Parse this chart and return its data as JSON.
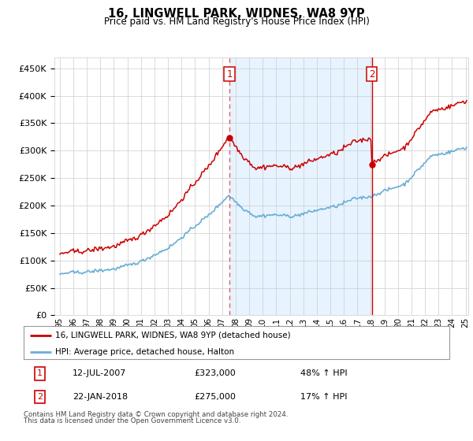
{
  "title": "16, LINGWELL PARK, WIDNES, WA8 9YP",
  "subtitle": "Price paid vs. HM Land Registry's House Price Index (HPI)",
  "legend_line1": "16, LINGWELL PARK, WIDNES, WA8 9YP (detached house)",
  "legend_line2": "HPI: Average price, detached house, Halton",
  "sale1_date": "12-JUL-2007",
  "sale1_price": "£323,000",
  "sale1_hpi": "48% ↑ HPI",
  "sale1_year": 2007.54,
  "sale1_value": 323000,
  "sale2_date": "22-JAN-2018",
  "sale2_price": "£275,000",
  "sale2_hpi": "17% ↑ HPI",
  "sale2_year": 2018.06,
  "sale2_value": 275000,
  "ylim_min": 0,
  "ylim_max": 470000,
  "footnote1": "Contains HM Land Registry data © Crown copyright and database right 2024.",
  "footnote2": "This data is licensed under the Open Government Licence v3.0.",
  "hpi_color": "#6baed6",
  "hpi_fill_color": "#d6e8f5",
  "sale_color": "#cc0000",
  "vline1_color": "#e06060",
  "vline2_color": "#cc0000",
  "span_color": "#ddeeff",
  "grid_color": "#cccccc",
  "plot_bg_color": "#ffffff"
}
